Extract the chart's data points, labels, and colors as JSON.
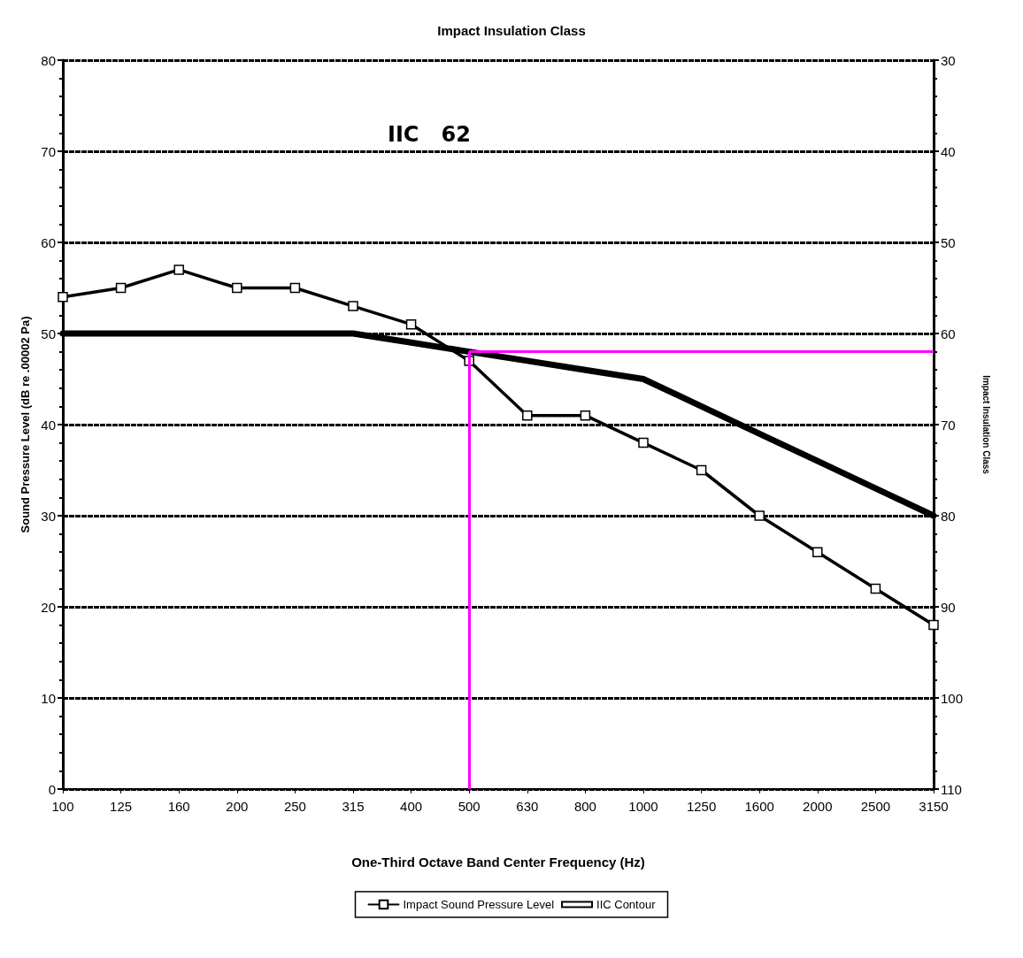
{
  "chart_data": {
    "type": "line",
    "title": "Impact Insulation Class",
    "xlabel": "One-Third Octave Band Center Frequency (Hz)",
    "ylabel": "Sound Pressure Level (dB re .00002 Pa)",
    "y2label": "Impact Insulation Class",
    "categories": [
      "100",
      "125",
      "160",
      "200",
      "250",
      "315",
      "400",
      "500",
      "630",
      "800",
      "1000",
      "1250",
      "1600",
      "2000",
      "2500",
      "3150"
    ],
    "series": [
      {
        "name": "Impact Sound Pressure Level",
        "color": "#000000",
        "marker": "square",
        "values": [
          54,
          55,
          57,
          55,
          55,
          53,
          51,
          47,
          41,
          41,
          38,
          35,
          30,
          26,
          22,
          18
        ]
      },
      {
        "name": "IIC Contour",
        "color": "#000000",
        "marker": "none",
        "values": [
          50,
          50,
          50,
          50,
          50,
          50,
          49,
          48,
          47,
          46,
          45,
          42,
          39,
          36,
          33,
          30
        ]
      }
    ],
    "ref_lines": [
      {
        "axis": "x",
        "value": "500",
        "color": "#ff00ff"
      },
      {
        "axis": "y",
        "value": 48,
        "color": "#ff00ff"
      }
    ],
    "ylim": [
      0,
      80
    ],
    "yticks": [
      0,
      10,
      20,
      30,
      40,
      50,
      60,
      70,
      80
    ],
    "y2lim": [
      110,
      30
    ],
    "y2ticks": [
      110,
      100,
      90,
      80,
      70,
      60,
      50,
      40,
      30
    ],
    "annotations": [
      "IIC   62"
    ],
    "grid": "y",
    "legend": "bottom",
    "line_style": "solid"
  }
}
